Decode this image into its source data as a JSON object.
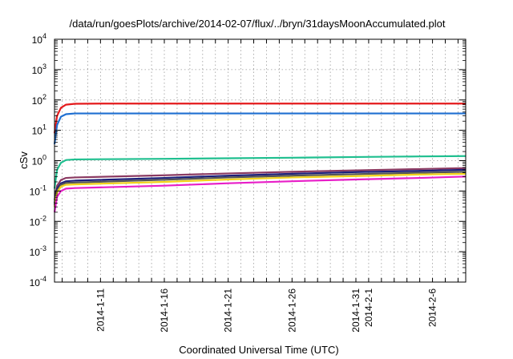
{
  "chart_data": {
    "type": "line",
    "title": "/data/run/goesPlots/archive/2014-02-07/flux/../bryn/31daysMoonAccumulated.plot",
    "xlabel": "Coordinated Universal Time (UTC)",
    "ylabel": "cSv",
    "x_range_days": [
      -3.6,
      28.6
    ],
    "yscale": "log",
    "ylim": [
      0.0001,
      10000
    ],
    "grid": true,
    "x_ticks": [
      {
        "x": 0,
        "label": "2014-1-11"
      },
      {
        "x": 5,
        "label": "2014-1-16"
      },
      {
        "x": 10,
        "label": "2014-1-21"
      },
      {
        "x": 15,
        "label": "2014-1-26"
      },
      {
        "x": 20,
        "label": "2014-1-31"
      },
      {
        "x": 21,
        "label": "2014-2-1"
      },
      {
        "x": 26,
        "label": "2014-2-6"
      }
    ],
    "y_ticks": [
      {
        "value": 0.0001,
        "base": "10",
        "exp": "-4"
      },
      {
        "value": 0.001,
        "base": "10",
        "exp": "-3"
      },
      {
        "value": 0.01,
        "base": "10",
        "exp": "-2"
      },
      {
        "value": 0.1,
        "base": "10",
        "exp": "-1"
      },
      {
        "value": 1,
        "base": "10",
        "exp": "0"
      },
      {
        "value": 10,
        "base": "10",
        "exp": "1"
      },
      {
        "value": 100,
        "base": "10",
        "exp": "2"
      },
      {
        "value": 1000,
        "base": "10",
        "exp": "3"
      },
      {
        "value": 10000,
        "base": "10",
        "exp": "4"
      }
    ],
    "series": [
      {
        "color": "#e41a1c",
        "points": [
          [
            -3.6,
            8
          ],
          [
            -3.4,
            30
          ],
          [
            -3.1,
            55
          ],
          [
            -2.7,
            70
          ],
          [
            -2.0,
            75
          ],
          [
            0,
            76
          ],
          [
            28.6,
            76
          ]
        ]
      },
      {
        "color": "#1f6fd1",
        "points": [
          [
            -3.6,
            3.5
          ],
          [
            -3.4,
            15
          ],
          [
            -3.1,
            28
          ],
          [
            -2.7,
            34
          ],
          [
            -2.0,
            36
          ],
          [
            0,
            36
          ],
          [
            28.6,
            36
          ]
        ]
      },
      {
        "color": "#1fbf8f",
        "points": [
          [
            -3.6,
            0.12
          ],
          [
            -3.4,
            0.5
          ],
          [
            -3.1,
            0.85
          ],
          [
            -2.7,
            1.05
          ],
          [
            -2.0,
            1.1
          ],
          [
            5,
            1.15
          ],
          [
            10,
            1.2
          ],
          [
            15,
            1.25
          ],
          [
            20,
            1.32
          ],
          [
            25,
            1.38
          ],
          [
            28.6,
            1.42
          ]
        ]
      },
      {
        "color": "#8b3a62",
        "points": [
          [
            -3.6,
            0.05
          ],
          [
            -3.4,
            0.15
          ],
          [
            -3.1,
            0.23
          ],
          [
            -2.7,
            0.27
          ],
          [
            -2.0,
            0.28
          ],
          [
            5,
            0.33
          ],
          [
            10,
            0.38
          ],
          [
            15,
            0.43
          ],
          [
            20,
            0.48
          ],
          [
            25,
            0.53
          ],
          [
            28.6,
            0.57
          ]
        ]
      },
      {
        "color": "#1b1f7a",
        "points": [
          [
            -3.6,
            0.04
          ],
          [
            -3.4,
            0.12
          ],
          [
            -3.1,
            0.18
          ],
          [
            -2.7,
            0.21
          ],
          [
            -2.0,
            0.22
          ],
          [
            5,
            0.27
          ],
          [
            10,
            0.32
          ],
          [
            15,
            0.37
          ],
          [
            20,
            0.42
          ],
          [
            25,
            0.46
          ],
          [
            28.6,
            0.5
          ]
        ]
      },
      {
        "color": "#555555",
        "points": [
          [
            -3.6,
            0.035
          ],
          [
            -3.4,
            0.1
          ],
          [
            -3.1,
            0.16
          ],
          [
            -2.7,
            0.185
          ],
          [
            -2.0,
            0.19
          ],
          [
            5,
            0.235
          ],
          [
            10,
            0.28
          ],
          [
            15,
            0.32
          ],
          [
            20,
            0.36
          ],
          [
            25,
            0.4
          ],
          [
            28.6,
            0.43
          ]
        ]
      },
      {
        "color": "#f2d21b",
        "points": [
          [
            -3.6,
            0.03
          ],
          [
            -3.4,
            0.09
          ],
          [
            -3.1,
            0.14
          ],
          [
            -2.7,
            0.16
          ],
          [
            -2.0,
            0.165
          ],
          [
            5,
            0.2
          ],
          [
            10,
            0.24
          ],
          [
            15,
            0.28
          ],
          [
            20,
            0.31
          ],
          [
            25,
            0.35
          ],
          [
            28.6,
            0.37
          ]
        ]
      },
      {
        "color": "#e81ec8",
        "points": [
          [
            -3.6,
            0.02
          ],
          [
            -3.4,
            0.065
          ],
          [
            -3.1,
            0.1
          ],
          [
            -2.7,
            0.12
          ],
          [
            -2.0,
            0.125
          ],
          [
            5,
            0.15
          ],
          [
            10,
            0.18
          ],
          [
            15,
            0.21
          ],
          [
            20,
            0.24
          ],
          [
            25,
            0.27
          ],
          [
            28.6,
            0.3
          ]
        ]
      }
    ]
  }
}
